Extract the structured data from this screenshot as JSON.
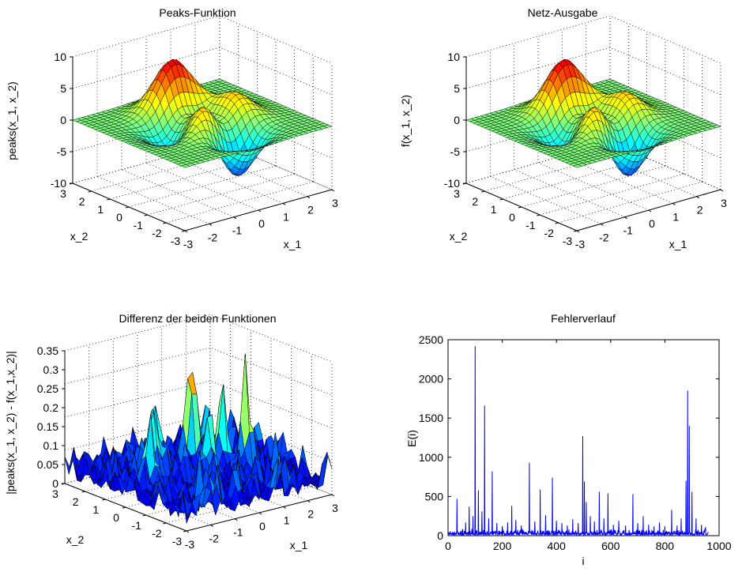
{
  "chart_data": [
    {
      "type": "surface3d",
      "function": "peaks",
      "title": "Peaks-Funktion",
      "xlabel": "x_1",
      "ylabel": "x_2",
      "zlabel": "peaks(x_1, x_2)",
      "xlim": [
        -3,
        3
      ],
      "ylim": [
        -3,
        3
      ],
      "zlim": [
        -10,
        10
      ],
      "xticks": [
        "-3",
        "-2",
        "-1",
        "0",
        "1",
        "2",
        "3"
      ],
      "yticks": [
        "-3",
        "-2",
        "-1",
        "0",
        "1",
        "2",
        "3"
      ],
      "zticks": [
        "-10",
        "-5",
        "0",
        "5",
        "10"
      ],
      "grid": true,
      "colormap": "jet"
    },
    {
      "type": "surface3d",
      "function": "network-approximation-of-peaks",
      "title": "Netz-Ausgabe",
      "xlabel": "x_1",
      "ylabel": "x_2",
      "zlabel": "f(x_1, x_2)",
      "xlim": [
        -3,
        3
      ],
      "ylim": [
        -3,
        3
      ],
      "zlim": [
        -10,
        10
      ],
      "xticks": [
        "-3",
        "-2",
        "-1",
        "0",
        "1",
        "2",
        "3"
      ],
      "yticks": [
        "-3",
        "-2",
        "-1",
        "0",
        "1",
        "2",
        "3"
      ],
      "zticks": [
        "-10",
        "-5",
        "0",
        "5",
        "10"
      ],
      "grid": true,
      "colormap": "jet"
    },
    {
      "type": "surface3d",
      "function": "absolute-difference",
      "title": "Differenz der beiden Funktionen",
      "xlabel": "x_1",
      "ylabel": "x_2",
      "zlabel": "|peaks(x_1, x_2) - f(x_1,x_2)|",
      "xlim": [
        -3,
        3
      ],
      "ylim": [
        -3,
        3
      ],
      "zlim": [
        0,
        0.35
      ],
      "xticks": [
        "-3",
        "-2",
        "-1",
        "0",
        "1",
        "2",
        "3"
      ],
      "yticks": [
        "-3",
        "-2",
        "-1",
        "0",
        "1",
        "2",
        "3"
      ],
      "zticks": [
        "0",
        "0.05",
        "0.1",
        "0.15",
        "0.2",
        "0.25",
        "0.3",
        "0.35"
      ],
      "grid": true,
      "colormap": "jet",
      "peak_points": [
        {
          "x": 0.5,
          "y": 0.9,
          "z": 0.33
        },
        {
          "x": 1.6,
          "y": -0.4,
          "z": 0.27
        },
        {
          "x": 1.2,
          "y": 0.3,
          "z": 0.25
        },
        {
          "x": -1.2,
          "y": 0.8,
          "z": 0.22
        },
        {
          "x": -0.6,
          "y": 1.5,
          "z": 0.2
        },
        {
          "x": 0.2,
          "y": -0.2,
          "z": 0.2
        },
        {
          "x": -1.8,
          "y": 0.3,
          "z": 0.18
        },
        {
          "x": 2.3,
          "y": 0.4,
          "z": 0.15
        }
      ]
    },
    {
      "type": "line",
      "title": "Fehlerverlauf",
      "xlabel": "i",
      "ylabel": "E(i)",
      "xlim": [
        0,
        1000
      ],
      "ylim": [
        0,
        2500
      ],
      "xticks": [
        0,
        200,
        400,
        600,
        800,
        1000
      ],
      "yticks": [
        0,
        500,
        1000,
        1500,
        2000,
        2500
      ],
      "color": "#0000ff",
      "baseline": 50,
      "spikes": [
        {
          "x": 33,
          "y": 470
        },
        {
          "x": 65,
          "y": 170
        },
        {
          "x": 78,
          "y": 370
        },
        {
          "x": 92,
          "y": 250
        },
        {
          "x": 100,
          "y": 2420
        },
        {
          "x": 112,
          "y": 580
        },
        {
          "x": 125,
          "y": 310
        },
        {
          "x": 135,
          "y": 1660
        },
        {
          "x": 150,
          "y": 220
        },
        {
          "x": 163,
          "y": 820
        },
        {
          "x": 180,
          "y": 160
        },
        {
          "x": 200,
          "y": 120
        },
        {
          "x": 220,
          "y": 170
        },
        {
          "x": 235,
          "y": 380
        },
        {
          "x": 250,
          "y": 200
        },
        {
          "x": 270,
          "y": 130
        },
        {
          "x": 300,
          "y": 930
        },
        {
          "x": 320,
          "y": 180
        },
        {
          "x": 340,
          "y": 590
        },
        {
          "x": 360,
          "y": 260
        },
        {
          "x": 385,
          "y": 740
        },
        {
          "x": 400,
          "y": 190
        },
        {
          "x": 420,
          "y": 160
        },
        {
          "x": 440,
          "y": 130
        },
        {
          "x": 460,
          "y": 210
        },
        {
          "x": 480,
          "y": 160
        },
        {
          "x": 497,
          "y": 1270
        },
        {
          "x": 503,
          "y": 690
        },
        {
          "x": 510,
          "y": 430
        },
        {
          "x": 525,
          "y": 250
        },
        {
          "x": 540,
          "y": 180
        },
        {
          "x": 558,
          "y": 560
        },
        {
          "x": 575,
          "y": 220
        },
        {
          "x": 590,
          "y": 540
        },
        {
          "x": 610,
          "y": 140
        },
        {
          "x": 630,
          "y": 190
        },
        {
          "x": 655,
          "y": 130
        },
        {
          "x": 682,
          "y": 530
        },
        {
          "x": 700,
          "y": 160
        },
        {
          "x": 720,
          "y": 250
        },
        {
          "x": 740,
          "y": 140
        },
        {
          "x": 760,
          "y": 120
        },
        {
          "x": 780,
          "y": 170
        },
        {
          "x": 800,
          "y": 120
        },
        {
          "x": 825,
          "y": 330
        },
        {
          "x": 845,
          "y": 130
        },
        {
          "x": 860,
          "y": 220
        },
        {
          "x": 878,
          "y": 700
        },
        {
          "x": 884,
          "y": 1850
        },
        {
          "x": 890,
          "y": 1400
        },
        {
          "x": 900,
          "y": 560
        },
        {
          "x": 915,
          "y": 220
        },
        {
          "x": 935,
          "y": 140
        },
        {
          "x": 950,
          "y": 110
        }
      ]
    }
  ]
}
